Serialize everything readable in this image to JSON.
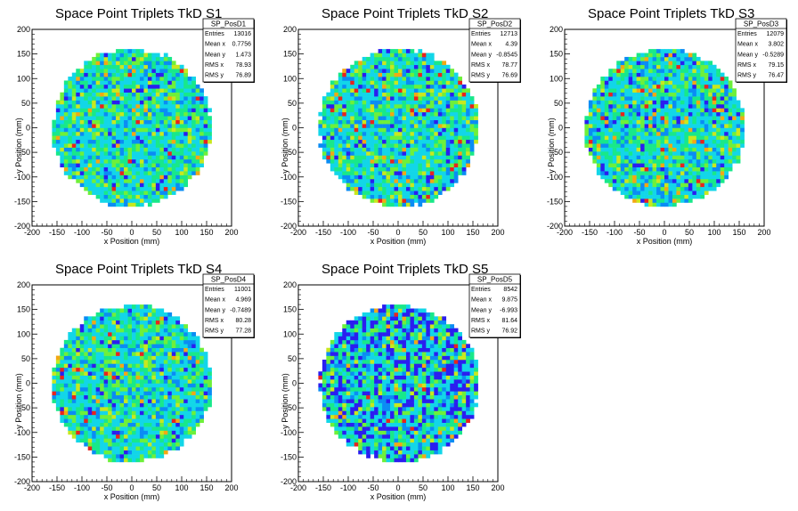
{
  "chart_data": [
    {
      "type": "heatmap",
      "title": "Space Point Triplets TkD S1",
      "xlabel": "x Position (mm)",
      "ylabel": "y Position (mm)",
      "xlim": [
        -200,
        200
      ],
      "ylim": [
        -200,
        200
      ],
      "x_ticks": [
        "-200",
        "-150",
        "-100",
        "-50",
        "0",
        "50",
        "100",
        "150",
        "200"
      ],
      "y_ticks": [
        "-200",
        "-150",
        "-100",
        "-50",
        "0",
        "50",
        "100",
        "150",
        "200"
      ],
      "stats": {
        "name": "SP_PosD1",
        "rows": [
          {
            "label": "Entries",
            "value": "13016"
          },
          {
            "label": "Mean x",
            "value": "0.7756"
          },
          {
            "label": "Mean y",
            "value": "1.473"
          },
          {
            "label": "RMS x",
            "value": "78.93"
          },
          {
            "label": "RMS y",
            "value": "76.89"
          }
        ]
      },
      "entries": 13016,
      "mean_x": 0.7756,
      "mean_y": 1.473,
      "rms_x": 78.93,
      "rms_y": 76.89,
      "disk_radius": 160,
      "palette": [
        "#2a1ef0",
        "#0a8cf4",
        "#12d6e8",
        "#18e88a",
        "#6ef03a",
        "#c8e81e",
        "#f2a814",
        "#e8241e"
      ]
    },
    {
      "type": "heatmap",
      "title": "Space Point Triplets TkD S2",
      "xlabel": "x Position (mm)",
      "ylabel": "y Position (mm)",
      "xlim": [
        -200,
        200
      ],
      "ylim": [
        -200,
        200
      ],
      "x_ticks": [
        "-200",
        "-150",
        "-100",
        "-50",
        "0",
        "50",
        "100",
        "150",
        "200"
      ],
      "y_ticks": [
        "-200",
        "-150",
        "-100",
        "-50",
        "0",
        "50",
        "100",
        "150",
        "200"
      ],
      "stats": {
        "name": "SP_PosD2",
        "rows": [
          {
            "label": "Entries",
            "value": "12713"
          },
          {
            "label": "Mean x",
            "value": "4.39"
          },
          {
            "label": "Mean y",
            "value": "-0.8545"
          },
          {
            "label": "RMS x",
            "value": "78.77"
          },
          {
            "label": "RMS y",
            "value": "76.69"
          }
        ]
      },
      "entries": 12713,
      "mean_x": 4.39,
      "mean_y": -0.8545,
      "rms_x": 78.77,
      "rms_y": 76.69,
      "disk_radius": 160,
      "palette": [
        "#2a1ef0",
        "#0a8cf4",
        "#12d6e8",
        "#18e88a",
        "#6ef03a",
        "#c8e81e",
        "#f2a814",
        "#e8241e"
      ]
    },
    {
      "type": "heatmap",
      "title": "Space Point Triplets TkD S3",
      "xlabel": "x Position (mm)",
      "ylabel": "y Position (mm)",
      "xlim": [
        -200,
        200
      ],
      "ylim": [
        -200,
        200
      ],
      "x_ticks": [
        "-200",
        "-150",
        "-100",
        "-50",
        "0",
        "50",
        "100",
        "150",
        "200"
      ],
      "y_ticks": [
        "-200",
        "-150",
        "-100",
        "-50",
        "0",
        "50",
        "100",
        "150",
        "200"
      ],
      "stats": {
        "name": "SP_PosD3",
        "rows": [
          {
            "label": "Entries",
            "value": "12079"
          },
          {
            "label": "Mean x",
            "value": "3.802"
          },
          {
            "label": "Mean y",
            "value": "-0.5289"
          },
          {
            "label": "RMS x",
            "value": "79.15"
          },
          {
            "label": "RMS y",
            "value": "76.47"
          }
        ]
      },
      "entries": 12079,
      "mean_x": 3.802,
      "mean_y": -0.5289,
      "rms_x": 79.15,
      "rms_y": 76.47,
      "disk_radius": 160,
      "palette": [
        "#2a1ef0",
        "#0a8cf4",
        "#12d6e8",
        "#18e88a",
        "#6ef03a",
        "#c8e81e",
        "#f2a814",
        "#e8241e"
      ]
    },
    {
      "type": "heatmap",
      "title": "Space Point Triplets TkD S4",
      "xlabel": "x Position (mm)",
      "ylabel": "y Position (mm)",
      "xlim": [
        -200,
        200
      ],
      "ylim": [
        -200,
        200
      ],
      "x_ticks": [
        "-200",
        "-150",
        "-100",
        "-50",
        "0",
        "50",
        "100",
        "150",
        "200"
      ],
      "y_ticks": [
        "-200",
        "-150",
        "-100",
        "-50",
        "0",
        "50",
        "100",
        "150",
        "200"
      ],
      "stats": {
        "name": "SP_PosD4",
        "rows": [
          {
            "label": "Entries",
            "value": "11001"
          },
          {
            "label": "Mean x",
            "value": "4.969"
          },
          {
            "label": "Mean y",
            "value": "-0.7489"
          },
          {
            "label": "RMS x",
            "value": "80.28"
          },
          {
            "label": "RMS y",
            "value": "77.28"
          }
        ]
      },
      "entries": 11001,
      "mean_x": 4.969,
      "mean_y": -0.7489,
      "rms_x": 80.28,
      "rms_y": 77.28,
      "disk_radius": 160,
      "palette": [
        "#2a1ef0",
        "#0a8cf4",
        "#12d6e8",
        "#18e88a",
        "#6ef03a",
        "#c8e81e",
        "#f2a814",
        "#e8241e"
      ]
    },
    {
      "type": "heatmap",
      "title": "Space Point Triplets TkD S5",
      "xlabel": "x Position (mm)",
      "ylabel": "y Position (mm)",
      "xlim": [
        -200,
        200
      ],
      "ylim": [
        -200,
        200
      ],
      "x_ticks": [
        "-200",
        "-150",
        "-100",
        "-50",
        "0",
        "50",
        "100",
        "150",
        "200"
      ],
      "y_ticks": [
        "-200",
        "-150",
        "-100",
        "-50",
        "0",
        "50",
        "100",
        "150",
        "200"
      ],
      "stats": {
        "name": "SP_PosD5",
        "rows": [
          {
            "label": "Entries",
            "value": "8542"
          },
          {
            "label": "Mean x",
            "value": "9.875"
          },
          {
            "label": "Mean y",
            "value": "-6.993"
          },
          {
            "label": "RMS x",
            "value": "81.64"
          },
          {
            "label": "RMS y",
            "value": "76.92"
          }
        ]
      },
      "entries": 8542,
      "mean_x": 9.875,
      "mean_y": -6.993,
      "rms_x": 81.64,
      "rms_y": 76.92,
      "disk_radius": 160,
      "palette": [
        "#2a1ef0",
        "#0a8cf4",
        "#12d6e8",
        "#18e88a",
        "#6ef03a",
        "#c8e81e",
        "#f2a814",
        "#e8241e"
      ]
    }
  ]
}
